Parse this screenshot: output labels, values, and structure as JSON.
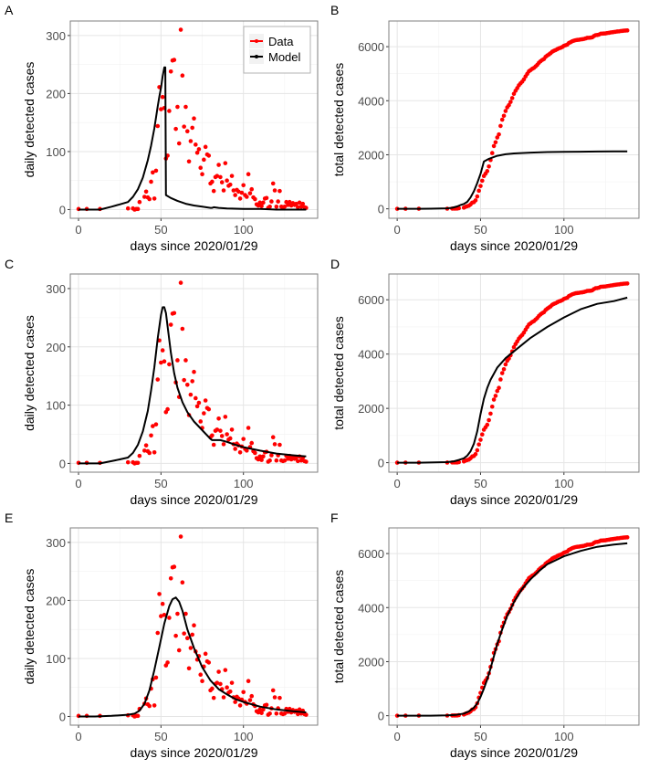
{
  "figure": {
    "panels_order": [
      "A",
      "B",
      "C",
      "D",
      "E",
      "F"
    ]
  },
  "legend": {
    "entries": [
      {
        "label": "Data",
        "color": "#ff0000"
      },
      {
        "label": "Model",
        "color": "#000000"
      }
    ]
  },
  "chart_data": [
    {
      "id": "A",
      "type": "scatter",
      "panel_label": "A",
      "xlabel": "days since 2020/01/29",
      "ylabel": "daily detected cases",
      "xlim": [
        -5,
        145
      ],
      "ylim": [
        -15,
        325
      ],
      "xticks": [
        0,
        50,
        100
      ],
      "yticks": [
        0,
        100,
        200,
        300
      ],
      "legend": "top-right",
      "series": [
        {
          "name": "Data",
          "kind": "points",
          "source": "daily",
          "color": "#ff0000"
        },
        {
          "name": "Model",
          "kind": "line",
          "color": "#000000",
          "x": [
            0,
            5,
            13,
            20,
            25,
            30,
            33,
            36,
            39,
            42,
            44,
            46,
            48,
            49,
            50,
            51,
            52,
            52.6,
            53,
            56,
            60,
            65,
            70,
            75,
            80,
            81,
            82,
            85,
            90,
            100,
            110,
            120,
            130,
            138
          ],
          "y": [
            0,
            0,
            0,
            5,
            9,
            13,
            22,
            35,
            55,
            85,
            110,
            140,
            178,
            195,
            210,
            230,
            245,
            245,
            25,
            20,
            15,
            10,
            7,
            5,
            3,
            3,
            4,
            3,
            2,
            1,
            1,
            0,
            0,
            0
          ]
        }
      ]
    },
    {
      "id": "B",
      "type": "scatter",
      "panel_label": "B",
      "xlabel": "days since 2020/01/29",
      "ylabel": "total detected cases",
      "xlim": [
        -5,
        145
      ],
      "ylim": [
        -350,
        6950
      ],
      "xticks": [
        0,
        50,
        100
      ],
      "yticks": [
        0,
        2000,
        4000,
        6000
      ],
      "series": [
        {
          "name": "Data",
          "kind": "points",
          "source": "cumulative",
          "color": "#ff0000"
        },
        {
          "name": "Model",
          "kind": "line",
          "color": "#000000",
          "x": [
            0,
            13,
            20,
            30,
            33,
            36,
            38,
            40,
            42,
            44,
            46,
            48,
            50,
            52,
            55,
            60,
            65,
            70,
            80,
            90,
            100,
            110,
            120,
            130,
            138
          ],
          "y": [
            0,
            0,
            5,
            20,
            40,
            90,
            140,
            180,
            260,
            420,
            650,
            950,
            1300,
            1750,
            1850,
            1960,
            2020,
            2050,
            2080,
            2100,
            2110,
            2115,
            2120,
            2125,
            2125
          ]
        }
      ]
    },
    {
      "id": "C",
      "type": "scatter",
      "panel_label": "C",
      "xlabel": "days since 2020/01/29",
      "ylabel": "daily detected cases",
      "xlim": [
        -5,
        145
      ],
      "ylim": [
        -15,
        325
      ],
      "xticks": [
        0,
        50,
        100
      ],
      "yticks": [
        0,
        100,
        200,
        300
      ],
      "series": [
        {
          "name": "Data",
          "kind": "points",
          "source": "daily",
          "color": "#ff0000"
        },
        {
          "name": "Model",
          "kind": "line",
          "color": "#000000",
          "x": [
            0,
            5,
            13,
            20,
            25,
            30,
            33,
            36,
            39,
            42,
            44,
            46,
            48,
            50,
            51,
            52,
            53,
            54,
            56,
            58,
            60,
            63,
            66,
            70,
            75,
            80,
            81,
            83,
            86,
            90,
            95,
            100,
            110,
            120,
            130,
            138
          ],
          "y": [
            0,
            0,
            0,
            4,
            7,
            10,
            18,
            32,
            55,
            90,
            125,
            165,
            215,
            255,
            268,
            268,
            258,
            235,
            190,
            155,
            130,
            105,
            88,
            72,
            57,
            42,
            40,
            40,
            40,
            37,
            32,
            28,
            22,
            17,
            14,
            12
          ]
        }
      ]
    },
    {
      "id": "D",
      "type": "scatter",
      "panel_label": "D",
      "xlabel": "days since 2020/01/29",
      "ylabel": "total detected cases",
      "xlim": [
        -5,
        145
      ],
      "ylim": [
        -350,
        6950
      ],
      "xticks": [
        0,
        50,
        100
      ],
      "yticks": [
        0,
        2000,
        4000,
        6000
      ],
      "series": [
        {
          "name": "Data",
          "kind": "points",
          "source": "cumulative",
          "color": "#ff0000"
        },
        {
          "name": "Model",
          "kind": "line",
          "color": "#000000",
          "x": [
            0,
            13,
            20,
            30,
            34,
            37,
            40,
            42,
            44,
            46,
            48,
            50,
            52,
            54,
            56,
            60,
            65,
            70,
            75,
            80,
            90,
            100,
            110,
            120,
            130,
            138
          ],
          "y": [
            0,
            0,
            5,
            20,
            50,
            100,
            160,
            260,
            420,
            700,
            1150,
            1800,
            2350,
            2750,
            3050,
            3500,
            3850,
            4100,
            4350,
            4600,
            5000,
            5350,
            5650,
            5850,
            5950,
            6080
          ]
        }
      ]
    },
    {
      "id": "E",
      "type": "scatter",
      "panel_label": "E",
      "xlabel": "days since 2020/01/29",
      "ylabel": "daily detected cases",
      "xlim": [
        -5,
        145
      ],
      "ylim": [
        -15,
        325
      ],
      "xticks": [
        0,
        50,
        100
      ],
      "yticks": [
        0,
        100,
        200,
        300
      ],
      "series": [
        {
          "name": "Data",
          "kind": "points",
          "source": "daily",
          "color": "#ff0000"
        },
        {
          "name": "Model",
          "kind": "line",
          "color": "#000000",
          "x": [
            0,
            10,
            20,
            30,
            34,
            37,
            40,
            43,
            46,
            49,
            52,
            55,
            57,
            59,
            61,
            63,
            66,
            70,
            75,
            80,
            85,
            90,
            95,
            100,
            110,
            120,
            130,
            138
          ],
          "y": [
            0,
            0,
            1,
            3,
            5,
            10,
            22,
            45,
            80,
            120,
            160,
            190,
            202,
            205,
            198,
            182,
            150,
            118,
            85,
            62,
            47,
            38,
            30,
            25,
            17,
            12,
            9,
            7
          ]
        }
      ]
    },
    {
      "id": "F",
      "type": "scatter",
      "panel_label": "F",
      "xlabel": "days since 2020/01/29",
      "ylabel": "total detected cases",
      "xlim": [
        -5,
        145
      ],
      "ylim": [
        -350,
        6950
      ],
      "xticks": [
        0,
        50,
        100
      ],
      "yticks": [
        0,
        2000,
        4000,
        6000
      ],
      "series": [
        {
          "name": "Data",
          "kind": "points",
          "source": "cumulative",
          "color": "#ff0000"
        },
        {
          "name": "Model",
          "kind": "line",
          "color": "#000000",
          "x": [
            0,
            13,
            20,
            30,
            35,
            40,
            43,
            46,
            48,
            50,
            52,
            54,
            56,
            58,
            60,
            63,
            66,
            70,
            75,
            80,
            85,
            90,
            100,
            110,
            120,
            130,
            138
          ],
          "y": [
            0,
            0,
            3,
            10,
            30,
            80,
            160,
            300,
            450,
            700,
            1000,
            1350,
            1750,
            2200,
            2650,
            3200,
            3700,
            4200,
            4700,
            5050,
            5350,
            5600,
            5900,
            6100,
            6250,
            6330,
            6380
          ]
        }
      ]
    }
  ],
  "observed": {
    "daily_x": [
      0,
      5,
      13,
      30,
      33,
      34,
      35,
      36,
      37,
      40,
      41,
      42,
      43,
      44,
      45,
      46,
      47,
      48,
      49,
      50,
      51,
      52,
      53,
      54,
      55,
      56,
      57,
      58,
      59,
      60,
      61,
      62,
      63,
      64,
      65,
      66,
      67,
      68,
      69,
      70,
      71,
      72,
      73,
      74,
      75,
      76,
      77,
      78,
      79,
      80,
      81,
      82,
      83,
      84,
      85,
      86,
      87,
      88,
      89,
      90,
      91,
      92,
      93,
      94,
      95,
      96,
      97,
      98,
      99,
      100,
      101,
      102,
      103,
      104,
      105,
      106,
      107,
      108,
      109,
      110,
      111,
      112,
      113,
      114,
      115,
      116,
      117,
      118,
      119,
      120,
      121,
      122,
      123,
      124,
      125,
      126,
      127,
      128,
      129,
      130,
      131,
      132,
      133,
      134,
      135,
      136,
      137,
      138
    ],
    "daily_y": [
      1,
      1,
      1,
      2,
      2,
      0,
      1,
      1,
      13,
      22,
      31,
      21,
      18,
      48,
      64,
      19,
      67,
      144,
      211,
      173,
      194,
      175,
      88,
      93,
      170,
      238,
      257,
      258,
      139,
      177,
      114,
      310,
      231,
      143,
      177,
      135,
      83,
      118,
      141,
      157,
      112,
      98,
      104,
      72,
      61,
      86,
      108,
      95,
      93,
      45,
      48,
      32,
      56,
      58,
      77,
      56,
      47,
      33,
      80,
      50,
      41,
      43,
      58,
      33,
      25,
      34,
      31,
      19,
      29,
      42,
      25,
      22,
      61,
      28,
      35,
      21,
      18,
      9,
      7,
      12,
      6,
      12,
      19,
      20,
      3,
      5,
      14,
      45,
      33,
      5,
      14,
      32,
      5,
      4,
      5,
      13,
      8,
      13,
      7,
      11,
      8,
      10,
      4,
      12,
      5,
      10,
      4,
      3
    ]
  }
}
